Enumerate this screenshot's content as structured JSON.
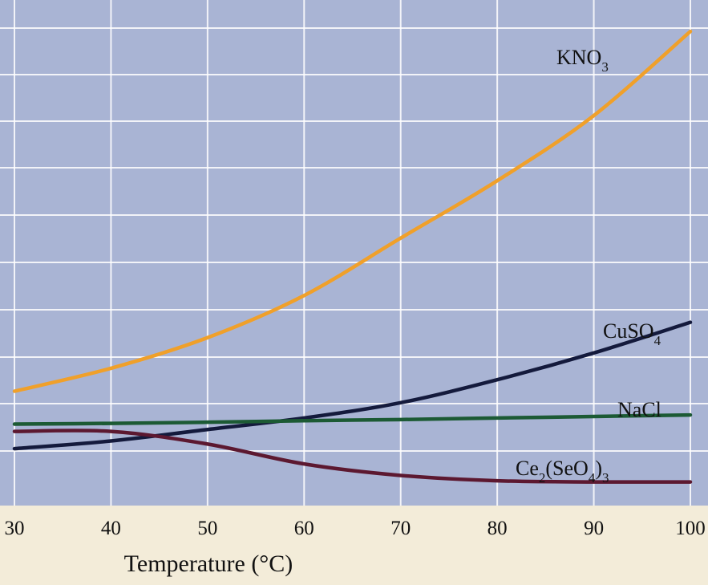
{
  "chart_data": {
    "type": "line",
    "title": "",
    "xlabel": "Temperature (°C)",
    "ylabel": "",
    "xlim": [
      30,
      100
    ],
    "ylim": [
      0,
      100
    ],
    "x_ticks": [
      30,
      40,
      50,
      60,
      70,
      80,
      90,
      100
    ],
    "x_tick_labels": [
      "30",
      "40",
      "50",
      "60",
      "70",
      "80",
      "90",
      "100"
    ],
    "grid": true,
    "colors": {
      "plot_background": "#a9b4d4",
      "page_background": "#f3ecd9",
      "gridline": "#ffffff"
    },
    "series": [
      {
        "name": "KNO3",
        "label_main": "KNO",
        "label_subscript": "3",
        "color": "#f0a02a",
        "x": [
          30,
          40,
          50,
          60,
          70,
          80,
          90,
          100
        ],
        "y": [
          24,
          30,
          38,
          49,
          64,
          79,
          96,
          118
        ]
      },
      {
        "name": "CuSO4",
        "label_main": "CuSO",
        "label_subscript": "4",
        "color": "#141a3c",
        "x": [
          30,
          40,
          50,
          60,
          70,
          80,
          90,
          100
        ],
        "y": [
          9,
          11,
          14,
          17,
          21,
          27,
          34,
          42
        ]
      },
      {
        "name": "NaCl",
        "label_main": "NaCl",
        "color": "#1c5a34",
        "x": [
          30,
          40,
          50,
          60,
          70,
          80,
          90,
          100
        ],
        "y": [
          15.4,
          15.6,
          15.9,
          16.3,
          16.6,
          17.0,
          17.4,
          17.8
        ]
      },
      {
        "name": "Ce2(SeO4)3",
        "label_parts": [
          "Ce",
          "2",
          "(SeO",
          "4",
          ")",
          "3"
        ],
        "color": "#5c1830",
        "x": [
          30,
          40,
          50,
          60,
          70,
          80,
          90,
          100
        ],
        "y": [
          13.5,
          13.5,
          10.2,
          5.0,
          2.0,
          0.6,
          0.3,
          0.3
        ]
      }
    ]
  }
}
